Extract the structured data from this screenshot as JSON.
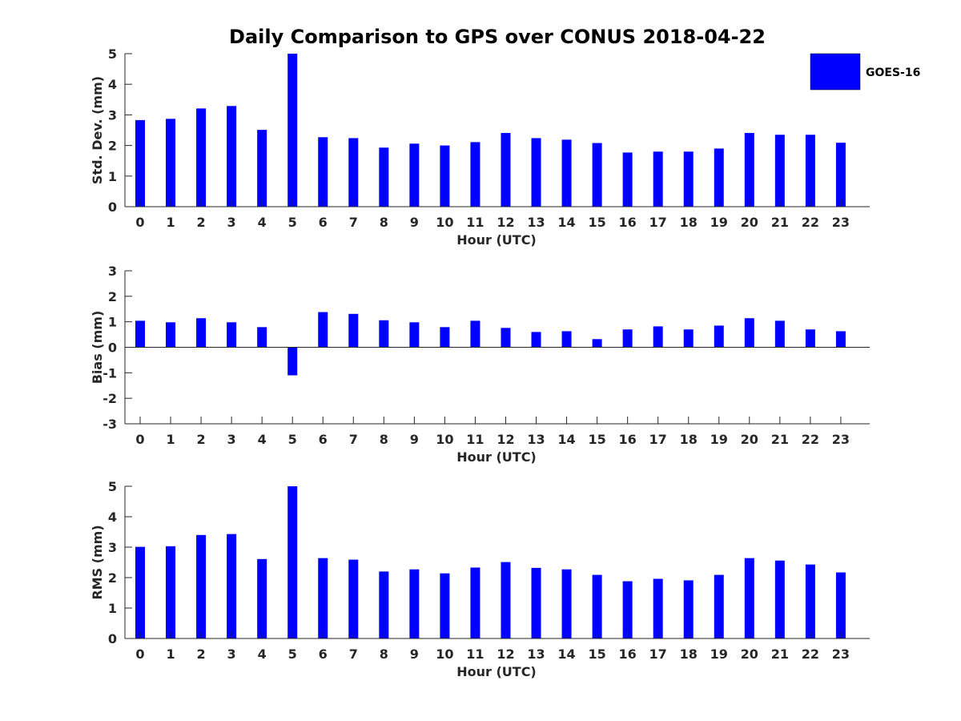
{
  "chart_data": {
    "title": "Daily Comparison to GPS over CONUS 2018-04-22",
    "type": "bar",
    "series_color": "#0000ff",
    "legend": {
      "label": "GOES-16",
      "placement": "top-right"
    },
    "categories": [
      "0",
      "1",
      "2",
      "3",
      "4",
      "5",
      "6",
      "7",
      "8",
      "9",
      "10",
      "11",
      "12",
      "13",
      "14",
      "15",
      "16",
      "17",
      "18",
      "19",
      "20",
      "21",
      "22",
      "23"
    ],
    "panels": [
      {
        "id": "stddev",
        "type": "bar",
        "xlabel": "Hour (UTC)",
        "ylabel": "Std. Dev. (mm)",
        "ylim": [
          0,
          5
        ],
        "yticks": [
          0,
          1,
          2,
          3,
          4,
          5
        ],
        "series": [
          {
            "name": "GOES-16",
            "values": [
              2.83,
              2.87,
              3.21,
              3.29,
              2.51,
              5.0,
              2.27,
              2.24,
              1.93,
              2.06,
              2.0,
              2.11,
              2.41,
              2.24,
              2.19,
              2.08,
              1.77,
              1.8,
              1.8,
              1.9,
              2.41,
              2.35,
              2.35,
              2.09
            ]
          }
        ]
      },
      {
        "id": "bias",
        "type": "bar",
        "xlabel": "Hour (UTC)",
        "ylabel": "Bias (mm)",
        "ylim": [
          -3,
          3
        ],
        "yticks": [
          -3,
          -2,
          -1,
          0,
          1,
          2,
          3
        ],
        "series": [
          {
            "name": "GOES-16",
            "values": [
              1.04,
              0.98,
              1.14,
              0.98,
              0.79,
              -1.1,
              1.38,
              1.31,
              1.06,
              0.98,
              0.79,
              1.04,
              0.76,
              0.6,
              0.63,
              0.32,
              0.7,
              0.82,
              0.7,
              0.85,
              1.14,
              1.04,
              0.7,
              0.63
            ]
          }
        ]
      },
      {
        "id": "rms",
        "type": "bar",
        "xlabel": "Hour (UTC)",
        "ylabel": "RMS (mm)",
        "ylim": [
          0,
          5
        ],
        "yticks": [
          0,
          1,
          2,
          3,
          4,
          5
        ],
        "series": [
          {
            "name": "GOES-16",
            "values": [
              3.01,
              3.03,
              3.4,
              3.43,
              2.61,
              5.0,
              2.64,
              2.59,
              2.2,
              2.27,
              2.14,
              2.33,
              2.51,
              2.32,
              2.27,
              2.09,
              1.88,
              1.96,
              1.91,
              2.09,
              2.64,
              2.56,
              2.43,
              2.17
            ]
          }
        ]
      }
    ]
  }
}
